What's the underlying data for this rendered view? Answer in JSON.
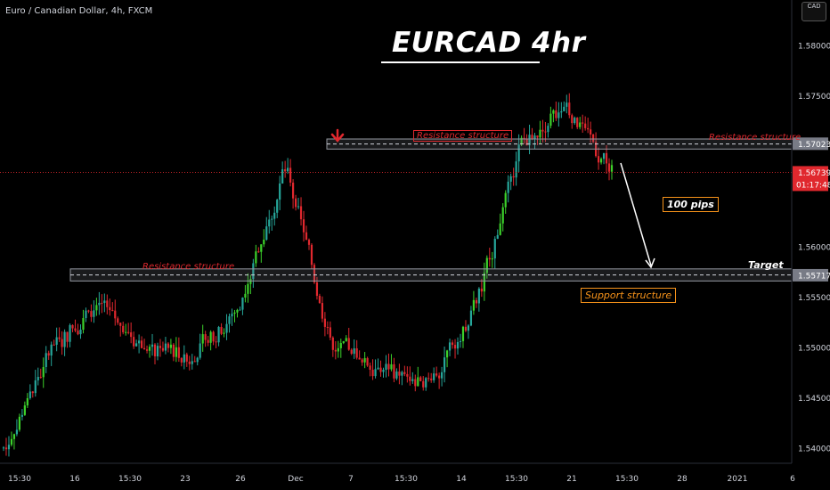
{
  "header": {
    "symbol_line": "Euro / Canadian Dollar, 4h, FXCM"
  },
  "title": "EURCAD 4hr",
  "currency_badge": "CAD",
  "annotations": {
    "resistance_top_center": "Resistance structure",
    "resistance_top_right": "Resistance structure",
    "resistance_left": "Resistance structure",
    "support": "Support structure",
    "pips": "100 pips",
    "target": "Target"
  },
  "colors": {
    "background": "#000000",
    "up_candle": "#26a69a",
    "up_candle_bright": "#3cd12b",
    "down_candle": "#e0282e",
    "annotation_red": "#e0282e",
    "annotation_orange": "#f7931a",
    "axis_text": "#d1d4dc"
  },
  "chart_data": {
    "type": "candlestick",
    "title": "EURCAD 4hr",
    "ylim": [
      1.5385,
      1.5845
    ],
    "y_ticks": [
      "1.58000",
      "1.57500",
      "1.57023",
      "1.56739",
      "1.56000",
      "1.55717",
      "1.55500",
      "1.55000",
      "1.54500",
      "1.54000"
    ],
    "x_ticks": [
      "15:30",
      "16",
      "15:30",
      "23",
      "26",
      "Dec",
      "7",
      "15:30",
      "14",
      "15:30",
      "21",
      "15:30",
      "28",
      "2021",
      "6"
    ],
    "current_price": "1.56739",
    "countdown": "01:17:48",
    "levels": [
      {
        "name": "Resistance structure",
        "low": 1.5697,
        "high": 1.5707,
        "price": "1.57023"
      },
      {
        "name": "Support structure",
        "low": 1.5566,
        "high": 1.5578,
        "price": "1.55717"
      }
    ],
    "approx_close_path": [
      {
        "x": "15:30",
        "close": 1.54
      },
      {
        "x": "16",
        "close": 1.55
      },
      {
        "x": "15:30",
        "close": 1.5545
      },
      {
        "x": "23",
        "close": 1.55
      },
      {
        "x": "26",
        "close": 1.549
      },
      {
        "x": "Dec",
        "close": 1.554
      },
      {
        "x": "Dec",
        "close": 1.568
      },
      {
        "x": "7",
        "close": 1.55
      },
      {
        "x": "15:30",
        "close": 1.548
      },
      {
        "x": "14",
        "close": 1.546
      },
      {
        "x": "15:30",
        "close": 1.553
      },
      {
        "x": "21",
        "close": 1.57
      },
      {
        "x": "15:30",
        "close": 1.574
      },
      {
        "x": "15:30",
        "close": 1.5674
      }
    ]
  }
}
